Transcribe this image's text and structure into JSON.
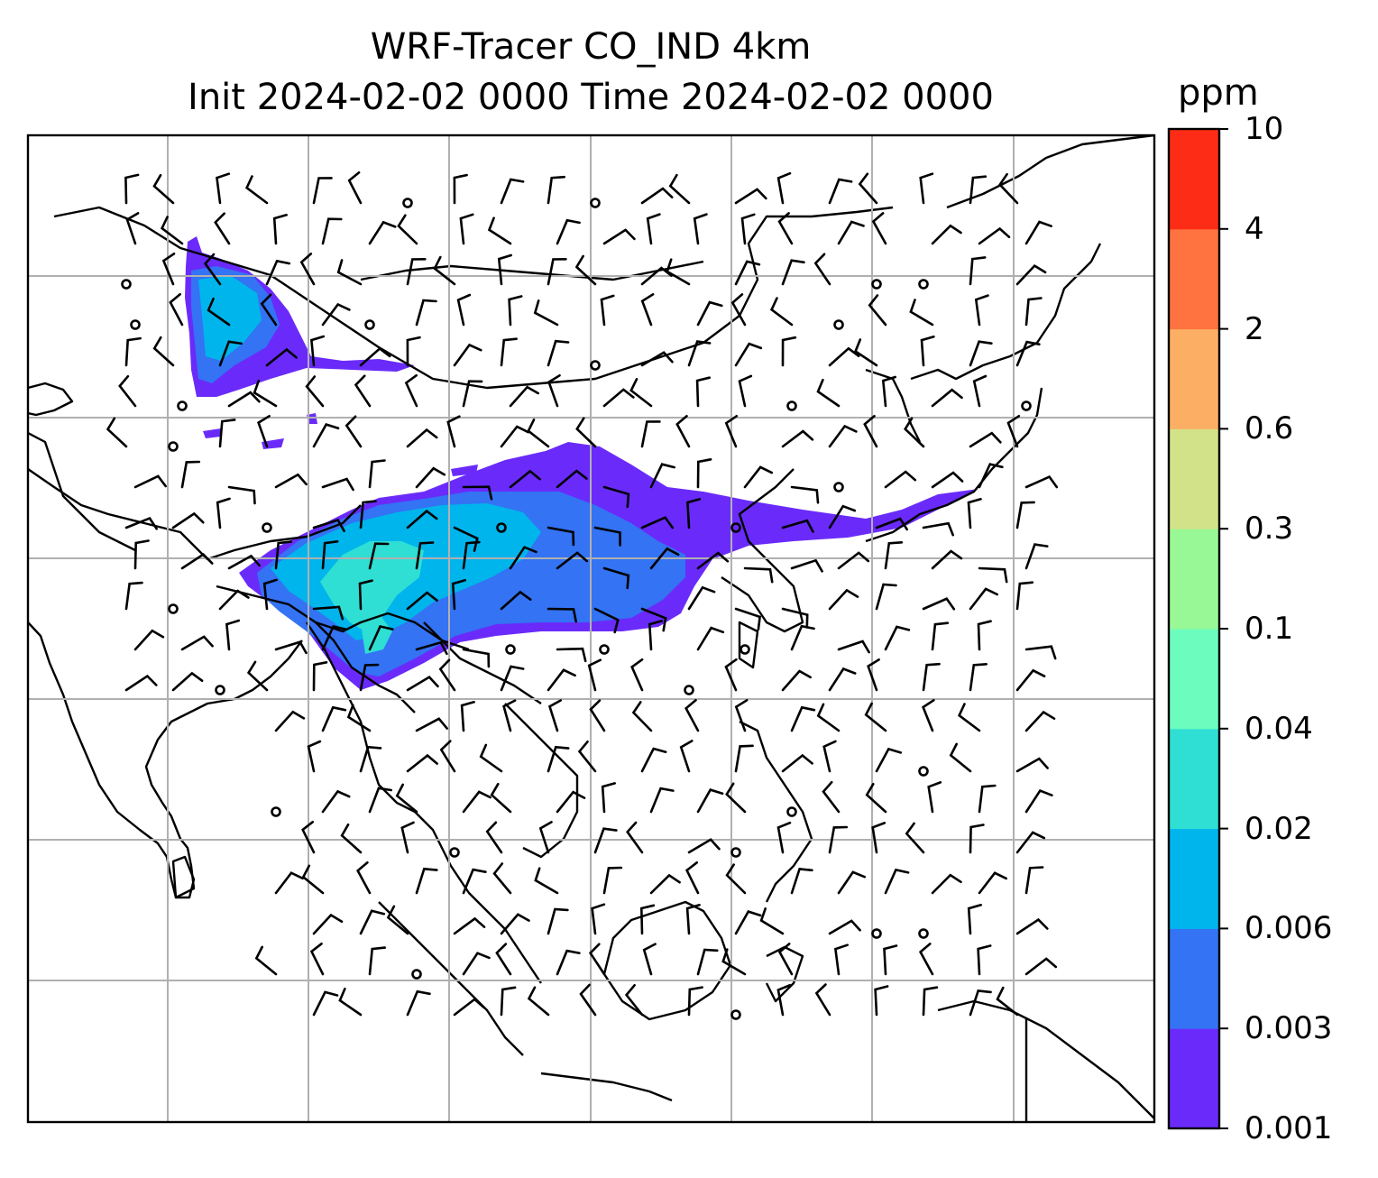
{
  "title": {
    "line1": "WRF-Tracer CO_IND 4km",
    "line2": "Init 2024-02-02 0000 Time 2024-02-02 0000"
  },
  "colorbar": {
    "unit": "ppm",
    "levels": [
      "0.001",
      "0.003",
      "0.006",
      "0.02",
      "0.04",
      "0.1",
      "0.3",
      "0.6",
      "2",
      "4",
      "10"
    ],
    "colors": [
      "#6a2bfa",
      "#3373f4",
      "#00b5ec",
      "#2fdfd4",
      "#6cfcbd",
      "#99f896",
      "#d2e289",
      "#fcaf64",
      "#fe7340",
      "#fd2c16"
    ]
  },
  "map": {
    "background": "#ffffff",
    "coastline_color": "#000000",
    "grid_color": "#b0b0b0",
    "wind_barb_color": "#000000"
  }
}
